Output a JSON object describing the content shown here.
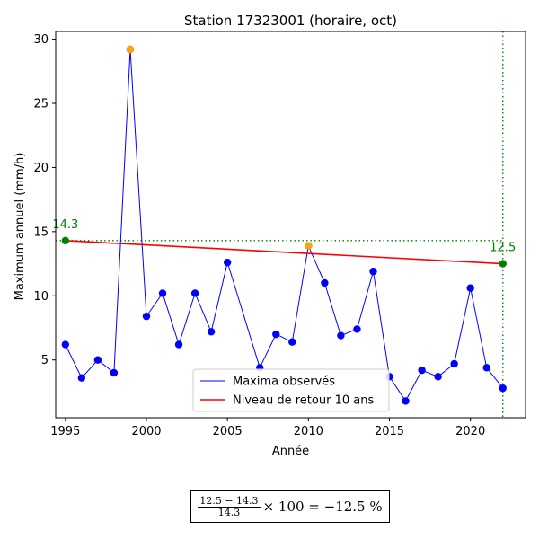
{
  "chart_data": {
    "type": "line",
    "title": "Station 17323001 (horaire, oct)",
    "xlabel": "Année",
    "ylabel": "Maximum annuel (mm/h)",
    "xlim": [
      1994.4,
      2023.4
    ],
    "ylim": [
      0.5,
      30.6
    ],
    "xticks": [
      1995,
      2000,
      2005,
      2010,
      2015,
      2020
    ],
    "yticks": [
      5,
      10,
      15,
      20,
      25,
      30
    ],
    "grid": false,
    "legend_position": "bottom-center",
    "series": [
      {
        "name": "Maxima observés",
        "color": "#0000ff",
        "x": [
          1995,
          1996,
          1997,
          1998,
          1999,
          2000,
          2001,
          2002,
          2003,
          2004,
          2005,
          2007,
          2008,
          2009,
          2010,
          2011,
          2012,
          2013,
          2014,
          2015,
          2016,
          2017,
          2018,
          2019,
          2020,
          2021,
          2022
        ],
        "y": [
          6.2,
          3.6,
          5.0,
          4.0,
          29.2,
          8.4,
          10.2,
          6.2,
          10.2,
          7.2,
          12.6,
          4.4,
          7.0,
          6.4,
          13.9,
          11.0,
          6.9,
          7.4,
          11.9,
          3.7,
          1.8,
          4.2,
          3.7,
          4.7,
          10.6,
          4.4,
          2.8
        ]
      },
      {
        "name": "Niveau de retour 10 ans",
        "color": "#ff0000",
        "x": [
          1995,
          2022
        ],
        "y": [
          14.3,
          12.5
        ]
      }
    ],
    "highlighted_points": [
      {
        "x": 1999,
        "y": 29.2,
        "color": "#ffa500"
      },
      {
        "x": 2010,
        "y": 13.9,
        "color": "#ffa500"
      }
    ],
    "endpoints": {
      "color": "#008000",
      "start": {
        "x": 1995,
        "y": 14.3,
        "label": "14.3"
      },
      "end": {
        "x": 2022,
        "y": 12.5,
        "label": "12.5"
      }
    }
  },
  "formula": {
    "numerator": "12.5 − 14.3",
    "denominator": "14.3",
    "rest": "× 100 = −12.5 %"
  }
}
